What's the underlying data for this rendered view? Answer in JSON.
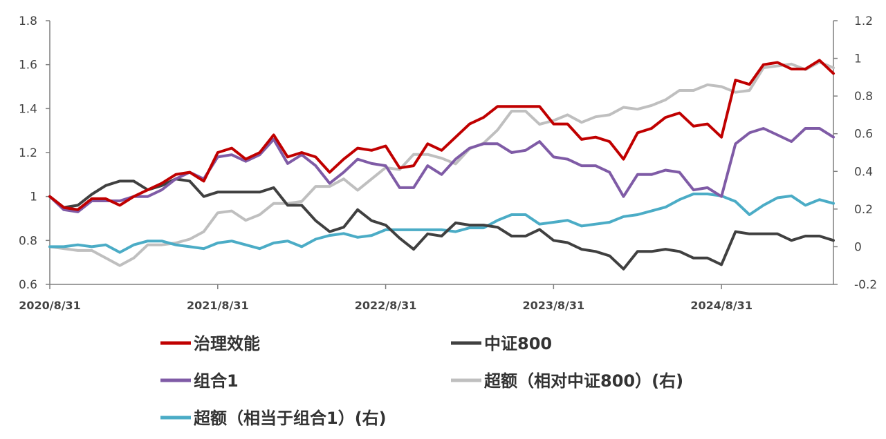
{
  "chart_data": {
    "type": "line",
    "x_ticks": [
      "2020/8/31",
      "2021/8/31",
      "2022/8/31",
      "2023/8/31",
      "2024/8/31"
    ],
    "y_left": {
      "range": [
        0.6,
        1.8
      ],
      "ticks": [
        "0.6",
        "0.8",
        "1",
        "1.2",
        "1.4",
        "1.6",
        "1.8"
      ]
    },
    "y_right": {
      "range": [
        -0.2,
        1.2
      ],
      "ticks": [
        "-0.2",
        "0",
        "0.2",
        "0.4",
        "0.6",
        "0.8",
        "1",
        "1.2"
      ]
    },
    "months_count": 57,
    "legend_position": "bottom",
    "grid": false,
    "series": [
      {
        "name": "治理效能",
        "axis": "left",
        "color": "#C00000",
        "values": [
          1.0,
          0.95,
          0.94,
          0.99,
          0.99,
          0.96,
          1.0,
          1.03,
          1.06,
          1.1,
          1.11,
          1.07,
          1.2,
          1.22,
          1.17,
          1.2,
          1.28,
          1.18,
          1.2,
          1.18,
          1.11,
          1.17,
          1.22,
          1.21,
          1.23,
          1.13,
          1.14,
          1.24,
          1.21,
          1.27,
          1.33,
          1.36,
          1.41,
          1.41,
          1.41,
          1.41,
          1.33,
          1.33,
          1.26,
          1.27,
          1.25,
          1.17,
          1.29,
          1.31,
          1.36,
          1.38,
          1.32,
          1.33,
          1.27,
          1.53,
          1.51,
          1.6,
          1.61,
          1.58,
          1.58,
          1.62,
          1.56
        ]
      },
      {
        "name": "中证800",
        "axis": "left",
        "color": "#404040",
        "values": [
          1.0,
          0.95,
          0.96,
          1.01,
          1.05,
          1.07,
          1.07,
          1.03,
          1.05,
          1.08,
          1.07,
          1.0,
          1.02,
          1.02,
          1.02,
          1.02,
          1.04,
          0.96,
          0.96,
          0.89,
          0.84,
          0.86,
          0.94,
          0.89,
          0.87,
          0.81,
          0.76,
          0.83,
          0.82,
          0.88,
          0.87,
          0.87,
          0.86,
          0.82,
          0.82,
          0.85,
          0.8,
          0.79,
          0.76,
          0.75,
          0.73,
          0.67,
          0.75,
          0.75,
          0.76,
          0.75,
          0.72,
          0.72,
          0.69,
          0.84,
          0.83,
          0.83,
          0.83,
          0.8,
          0.82,
          0.82,
          0.8
        ]
      },
      {
        "name": "组合1",
        "axis": "left",
        "color": "#7F5BA6",
        "values": [
          1.0,
          0.94,
          0.93,
          0.98,
          0.98,
          0.98,
          1.0,
          1.0,
          1.03,
          1.08,
          1.11,
          1.08,
          1.18,
          1.19,
          1.16,
          1.19,
          1.26,
          1.15,
          1.19,
          1.14,
          1.06,
          1.11,
          1.17,
          1.15,
          1.14,
          1.04,
          1.04,
          1.14,
          1.1,
          1.17,
          1.22,
          1.24,
          1.24,
          1.2,
          1.21,
          1.25,
          1.18,
          1.17,
          1.14,
          1.14,
          1.11,
          1.0,
          1.1,
          1.1,
          1.12,
          1.11,
          1.03,
          1.04,
          1.0,
          1.24,
          1.29,
          1.31,
          1.28,
          1.25,
          1.31,
          1.31,
          1.27
        ]
      },
      {
        "name": "超额（相对中证800）(右)",
        "axis": "right",
        "color": "#BFBFBF",
        "values": [
          0.0,
          -0.01,
          -0.02,
          -0.02,
          -0.06,
          -0.1,
          -0.06,
          0.01,
          0.01,
          0.02,
          0.04,
          0.08,
          0.18,
          0.19,
          0.14,
          0.17,
          0.23,
          0.23,
          0.24,
          0.32,
          0.32,
          0.36,
          0.3,
          0.36,
          0.42,
          0.41,
          0.49,
          0.49,
          0.47,
          0.44,
          0.52,
          0.55,
          0.62,
          0.72,
          0.72,
          0.65,
          0.67,
          0.7,
          0.66,
          0.69,
          0.7,
          0.74,
          0.73,
          0.75,
          0.78,
          0.83,
          0.83,
          0.86,
          0.85,
          0.82,
          0.83,
          0.95,
          0.96,
          0.97,
          0.94,
          0.98,
          0.95
        ]
      },
      {
        "name": "超额（相当于组合1）(右)",
        "axis": "right",
        "color": "#4BACC6",
        "values": [
          0.0,
          0.0,
          0.01,
          0.0,
          0.01,
          -0.03,
          0.01,
          0.03,
          0.03,
          0.01,
          0.0,
          -0.01,
          0.02,
          0.03,
          0.01,
          -0.01,
          0.02,
          0.03,
          0.0,
          0.04,
          0.06,
          0.07,
          0.05,
          0.06,
          0.09,
          0.09,
          0.09,
          0.09,
          0.09,
          0.08,
          0.1,
          0.1,
          0.14,
          0.17,
          0.17,
          0.12,
          0.13,
          0.14,
          0.11,
          0.12,
          0.13,
          0.16,
          0.17,
          0.19,
          0.21,
          0.25,
          0.28,
          0.28,
          0.27,
          0.24,
          0.17,
          0.22,
          0.26,
          0.27,
          0.22,
          0.25,
          0.23
        ]
      }
    ]
  }
}
